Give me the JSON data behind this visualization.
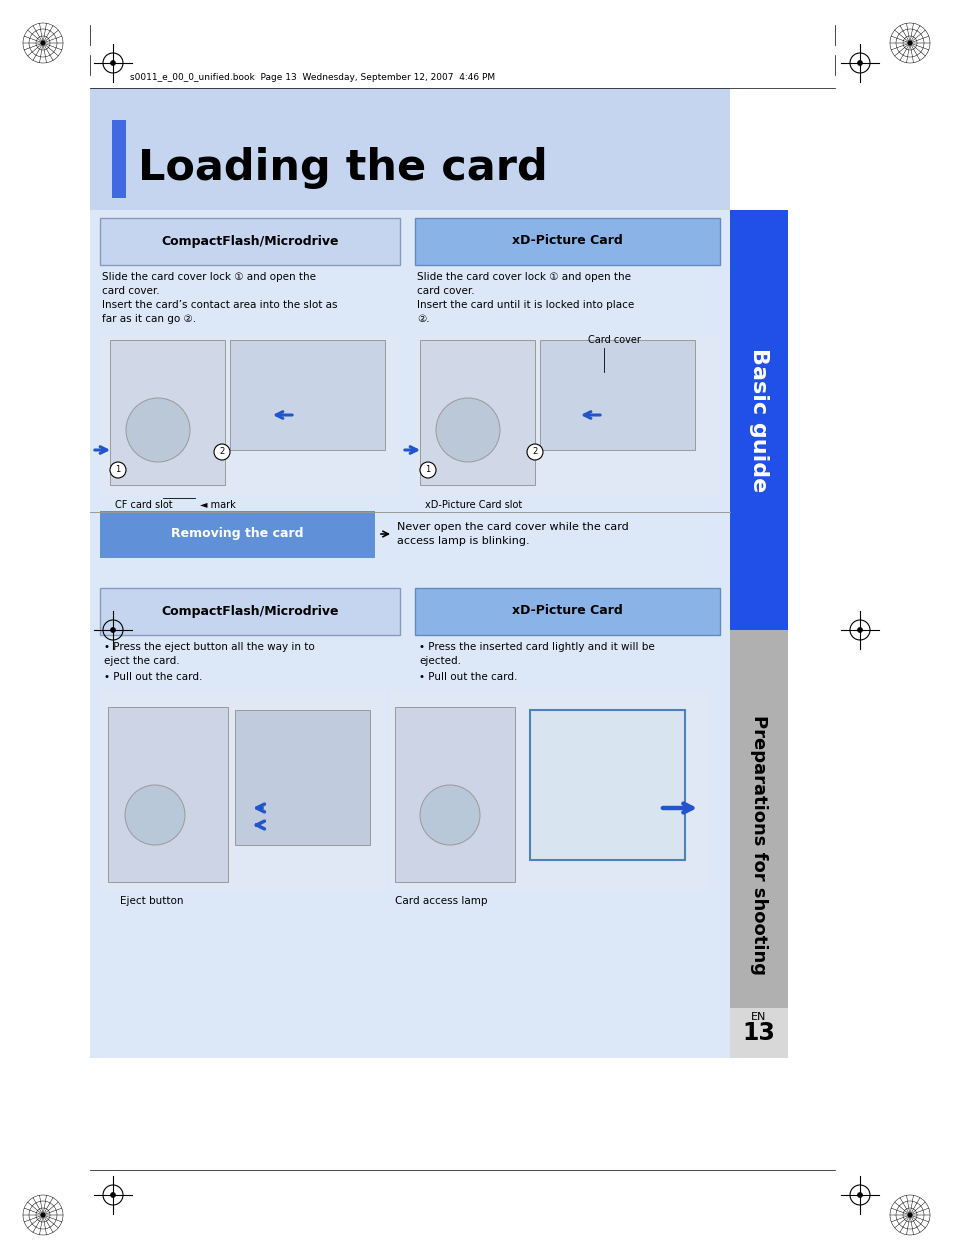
{
  "page_bg": "#ffffff",
  "header_text": "s0011_e_00_0_unified.book  Page 13  Wednesday, September 12, 2007  4:46 PM",
  "title_bg": "#c5d5f0",
  "title_text": "Loading the card",
  "title_blue_bar": "#4169e1",
  "content_bg": "#dce8f8",
  "blue_sidebar_color": "#2050e8",
  "gray_sidebar_color": "#b0b0b0",
  "sidebar_basic_guide": "Basic guide",
  "sidebar_preparations": "Preparations for shooting",
  "cf_header_bg": "#c5d5f0",
  "xd_header_bg": "#8ab4e8",
  "removing_header_bg": "#6090d8",
  "cf_header_text": "CompactFlash/Microdrive",
  "xd_header_text": "xD-Picture Card",
  "removing_text": "Removing the card",
  "cf_body1": "Slide the card cover lock ① and open the\ncard cover.\nInsert the card’s contact area into the slot as\nfar as it can go ②.",
  "xd_body1": "Slide the card cover lock ① and open the\ncard cover.\nInsert the card until it is locked into place\n②.",
  "removing_note": "Never open the card cover while the card\naccess lamp is blinking.",
  "cf_body2_bullets": [
    "Press the eject button all the way in to\neject the card.",
    "Pull out the card."
  ],
  "xd_body2_bullets": [
    "Press the inserted card lightly and it will be\nejected.",
    "Pull out the card."
  ],
  "cf_label1": "CF card slot",
  "cf_label2": "◄ mark",
  "xd_label1": "xD-Picture Card slot",
  "xd_label2": "Card cover",
  "eject_label": "Eject button",
  "card_access_label": "Card access lamp",
  "page_number": "13",
  "page_en": "EN"
}
